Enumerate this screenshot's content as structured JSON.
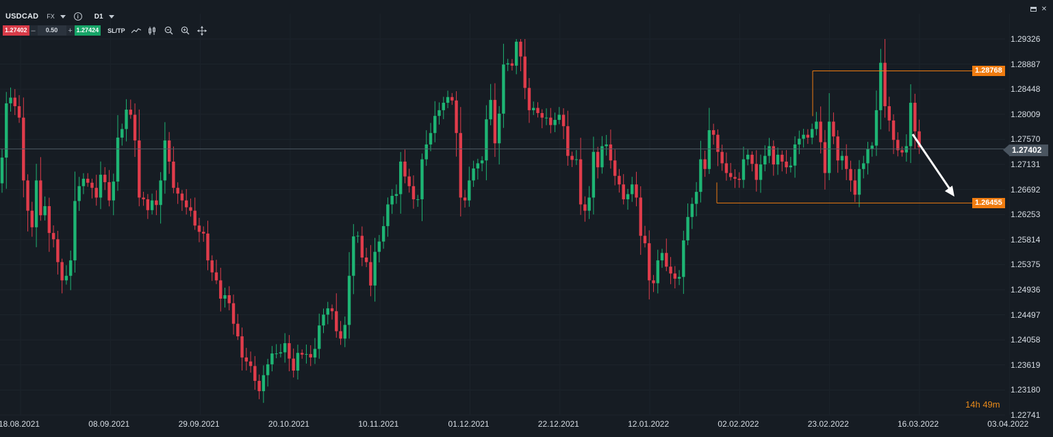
{
  "header": {
    "symbol": "USDCAD",
    "market_type": "FX",
    "info_icon": "info-icon",
    "timeframe": "D1"
  },
  "trade_panel": {
    "sell_price": "1.27402",
    "minus_label": "–",
    "quantity": "0.50",
    "plus_label": "+",
    "buy_price": "1.27424",
    "sltp_label": "SL/TP",
    "tools": [
      "line-chart-icon",
      "candles-icon",
      "zoom-out-icon",
      "zoom-in-icon",
      "crosshair-icon"
    ]
  },
  "window_controls": [
    "minimize-icon",
    "close-icon"
  ],
  "price_axis": {
    "labels": [
      "1.29326",
      "1.28887",
      "1.28448",
      "1.28009",
      "1.27570",
      "1.27131",
      "1.26692",
      "1.26253",
      "1.25814",
      "1.25375",
      "1.24936",
      "1.24497",
      "1.24058",
      "1.23619",
      "1.23180",
      "1.22741"
    ],
    "current_price": "1.27402",
    "upper_level": "1.28768",
    "lower_level": "1.26455",
    "colors": {
      "current_line": "#4f5a66",
      "level": "#f07c10",
      "bull": "#1eb574",
      "bear": "#e03c4b"
    }
  },
  "time_axis": {
    "labels": [
      "18.08.2021",
      "08.09.2021",
      "29.09.2021",
      "20.10.2021",
      "10.11.2021",
      "01.12.2021",
      "22.12.2021",
      "12.01.2022",
      "02.02.2022",
      "23.02.2022",
      "16.03.2022",
      "03.04.2022"
    ]
  },
  "timer": {
    "hours": "14h",
    "minutes": "49m"
  },
  "chart_data": {
    "type": "candlestick",
    "symbol": "USDCAD",
    "timeframe": "D1",
    "ylim": [
      1.22741,
      1.29326
    ],
    "horizontal_levels": [
      1.28768,
      1.26455
    ],
    "current_price": 1.27402,
    "closes": [
      1.2725,
      1.282,
      1.283,
      1.2815,
      1.2795,
      1.2685,
      1.2632,
      1.2603,
      1.2685,
      1.2624,
      1.264,
      1.2593,
      1.2582,
      1.2542,
      1.251,
      1.2518,
      1.2545,
      1.2649,
      1.2675,
      1.2688,
      1.2681,
      1.2672,
      1.2655,
      1.2695,
      1.2682,
      1.265,
      1.2683,
      1.276,
      1.2775,
      1.2809,
      1.28,
      1.2755,
      1.2655,
      1.2652,
      1.2633,
      1.265,
      1.2642,
      1.2685,
      1.2755,
      1.2718,
      1.2672,
      1.2662,
      1.265,
      1.2638,
      1.2632,
      1.2606,
      1.2595,
      1.2592,
      1.2545,
      1.2524,
      1.251,
      1.2478,
      1.2484,
      1.247,
      1.2434,
      1.2412,
      1.2375,
      1.2368,
      1.236,
      1.2334,
      1.2316,
      1.2344,
      1.2363,
      1.2382,
      1.2382,
      1.2384,
      1.24,
      1.2373,
      1.2352,
      1.2383,
      1.238,
      1.2381,
      1.2375,
      1.239,
      1.2431,
      1.245,
      1.2461,
      1.2456,
      1.2421,
      1.2408,
      1.2432,
      1.2518,
      1.2587,
      1.2588,
      1.255,
      1.2542,
      1.2501,
      1.256,
      1.2578,
      1.2605,
      1.2643,
      1.2658,
      1.2661,
      1.2718,
      1.2692,
      1.2675,
      1.2652,
      1.2652,
      1.2722,
      1.2748,
      1.2768,
      1.2798,
      1.2808,
      1.2821,
      1.2831,
      1.2825,
      1.2768,
      1.2655,
      1.265,
      1.2685,
      1.2706,
      1.2715,
      1.272,
      1.2792,
      1.2826,
      1.275,
      1.2802,
      1.2888,
      1.289,
      1.2886,
      1.2928,
      1.2902,
      1.2847,
      1.2808,
      1.2812,
      1.2803,
      1.2795,
      1.2795,
      1.2782,
      1.2791,
      1.28,
      1.278,
      1.2728,
      1.2721,
      1.2722,
      1.2643,
      1.2632,
      1.2655,
      1.2735,
      1.2708,
      1.2745,
      1.2748,
      1.272,
      1.2693,
      1.2678,
      1.2652,
      1.2661,
      1.2678,
      1.2655,
      1.2588,
      1.2575,
      1.251,
      1.2505,
      1.2545,
      1.2558,
      1.2534,
      1.2522,
      1.2513,
      1.2516,
      1.258,
      1.2621,
      1.2644,
      1.2665,
      1.2722,
      1.2705,
      1.2773,
      1.2765,
      1.2735,
      1.2715,
      1.2698,
      1.2691,
      1.2688,
      1.2686,
      1.2722,
      1.273,
      1.2714,
      1.2686,
      1.2713,
      1.2728,
      1.2745,
      1.2713,
      1.273,
      1.2718,
      1.2708,
      1.2711,
      1.2748,
      1.2758,
      1.2765,
      1.276,
      1.2775,
      1.2788,
      1.2752,
      1.2698,
      1.2788,
      1.2762,
      1.272,
      1.2728,
      1.2705,
      1.2685,
      1.266,
      1.2705,
      1.2715,
      1.274,
      1.2746,
      1.2808,
      1.2891,
      1.2815,
      1.279,
      1.2756,
      1.2738,
      1.2734,
      1.2745,
      1.2821,
      1.2771,
      1.2743
    ]
  }
}
